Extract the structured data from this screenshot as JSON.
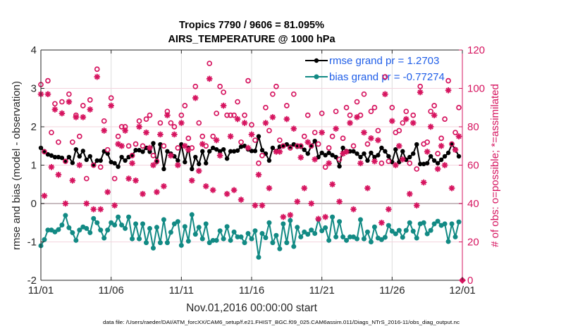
{
  "chart_data": {
    "type": "line",
    "title": "Tropics 7790 / 9606 = 81.095%",
    "subtitle": "AIRS_TEMPERATURE @ 1000 hPa",
    "xlabel": "Nov.01,2016 00:00:00 start",
    "ylabel": "rmse and bias (model - observation)",
    "y2label": "# of obs: o=possible; *=assimilated",
    "x_unit": "days since 11/01/2016 00:00",
    "x_step_days": 0.25,
    "xlim_days": [
      0,
      30
    ],
    "x_ticks_days": [
      0,
      5,
      10,
      15,
      20,
      25,
      30
    ],
    "x_tick_labels": [
      "11/01",
      "11/06",
      "11/11",
      "11/16",
      "11/21",
      "11/26",
      "12/01"
    ],
    "ylim": [
      -2,
      4
    ],
    "y_ticks": [
      -2,
      -1,
      0,
      1,
      2,
      3,
      4
    ],
    "y2lim": [
      0,
      120
    ],
    "y2_ticks": [
      0,
      20,
      40,
      60,
      80,
      100,
      120
    ],
    "grid": "on",
    "zero_line": 0,
    "legend_position": "top-right",
    "legend": [
      {
        "label": "rmse grand pr = 1.2703",
        "series": "rmse"
      },
      {
        "label": "bias grand pr = -0.77274",
        "series": "bias"
      }
    ],
    "series": [
      {
        "name": "rmse",
        "axis": "left",
        "style": "line-dot",
        "values": [
          1.45,
          1.36,
          1.28,
          1.25,
          1.21,
          1.21,
          1.19,
          1.1,
          1.21,
          1.06,
          1.41,
          1.23,
          1.37,
          1.14,
          1.23,
          0.99,
          1.12,
          1.12,
          1.36,
          1.3,
          1.08,
          1.05,
          0.96,
          1.21,
          1.12,
          1.21,
          1.26,
          1.39,
          1.39,
          1.35,
          1.45,
          1.35,
          1.57,
          1.08,
          1.54,
          0.9,
          1.36,
          1.3,
          1.23,
          1.12,
          1.54,
          1.08,
          1.45,
          0.9,
          1.21,
          1.03,
          1.36,
          1.05,
          1.36,
          1.45,
          1.41,
          1.36,
          1.41,
          1.17,
          1.36,
          1.36,
          1.38,
          1.48,
          1.5,
          1.41,
          1.37,
          1.37,
          1.75,
          1.39,
          1.3,
          1.12,
          1.45,
          1.36,
          1.48,
          1.5,
          1.54,
          1.48,
          1.54,
          1.48,
          1.48,
          1.4,
          1.3,
          1.5,
          1.63,
          1.21,
          1.32,
          1.26,
          1.32,
          1.26,
          1.21,
          0.97,
          1.45,
          1.36,
          1.36,
          1.36,
          1.3,
          1.21,
          1.3,
          1.12,
          1.32,
          1.21,
          1.26,
          1.45,
          1.36,
          1.23,
          1.08,
          1.41,
          1.08,
          1.36,
          1.14,
          1.21,
          1.3,
          1.54,
          1.03,
          1.03,
          1.05,
          1.23,
          1.12,
          1.05,
          1.14,
          1.23,
          1.32,
          1.54,
          1.41,
          1.23
        ]
      },
      {
        "name": "bias",
        "axis": "left",
        "style": "line-dot",
        "values": [
          -1.1,
          -0.94,
          -0.69,
          -0.69,
          -0.74,
          -0.68,
          -0.56,
          -0.31,
          -0.63,
          -0.76,
          -0.96,
          -0.69,
          -0.61,
          -0.65,
          -0.76,
          -0.39,
          -0.5,
          -0.69,
          -0.9,
          -0.69,
          -0.5,
          -0.56,
          -0.35,
          -0.56,
          -0.65,
          -0.35,
          -0.92,
          -0.53,
          -0.92,
          -0.53,
          -1.02,
          -0.65,
          -1.16,
          -0.62,
          -1.02,
          -0.42,
          -1.02,
          -0.75,
          -0.53,
          -0.47,
          -1.09,
          -0.6,
          -0.98,
          -0.29,
          -0.8,
          -0.62,
          -0.92,
          -0.53,
          -1.02,
          -0.96,
          -0.96,
          -0.71,
          -0.92,
          -0.6,
          -0.96,
          -0.74,
          -0.87,
          -0.87,
          -1.02,
          -0.78,
          -0.92,
          -0.71,
          -1.4,
          -0.78,
          -0.89,
          -0.5,
          -1.02,
          -0.83,
          -1.18,
          -0.53,
          -1.02,
          -0.44,
          -1.12,
          -0.62,
          -0.87,
          -0.74,
          -0.8,
          -0.69,
          -0.78,
          -0.42,
          -0.71,
          -0.63,
          -0.96,
          -0.35,
          -0.87,
          -0.47,
          -0.87,
          -0.96,
          -0.87,
          -0.87,
          -0.92,
          -0.42,
          -0.92,
          -0.74,
          -1.0,
          -0.61,
          -0.9,
          -0.94,
          -0.88,
          -0.57,
          -0.72,
          -0.79,
          -0.7,
          -0.88,
          -0.7,
          -0.5,
          -0.72,
          -0.9,
          -0.53,
          -0.5,
          -0.79,
          -0.7,
          -0.53,
          -0.46,
          -0.57,
          -0.53,
          -0.99,
          -0.53,
          -0.87,
          -0.48
        ]
      },
      {
        "name": "obs possible",
        "axis": "right",
        "style": "circle",
        "values": [
          102,
          67,
          104,
          77,
          92,
          72,
          93,
          62,
          97,
          72,
          86,
          75,
          91,
          53,
          94,
          60,
          110,
          59,
          83,
          68,
          95,
          53,
          75,
          80,
          80,
          70,
          65,
          71,
          83,
          70,
          84,
          86,
          65,
          62,
          82,
          70,
          88,
          82,
          80,
          69,
          86,
          91,
          74,
          69,
          101,
          82,
          75,
          70,
          113,
          75,
          87,
          101,
          98,
          86,
          86,
          86,
          93,
          72,
          86,
          104,
          81,
          73,
          61,
          65,
          90,
          78,
          97,
          101,
          73,
          70,
          91,
          69,
          97,
          70,
          70,
          75,
          86,
          70,
          77,
          71,
          87,
          59,
          69,
          75,
          88,
          63,
          74,
          90,
          86,
          70,
          93,
          86,
          97,
          71,
          88,
          90,
          78,
          61,
          106,
          62,
          90,
          77,
          78,
          82,
          88,
          61,
          86,
          58,
          101,
          71,
          72,
          88,
          91,
          66,
          74,
          84,
          104,
          71,
          77,
          90
        ]
      },
      {
        "name": "obs assimilated",
        "axis": "right",
        "style": "asterisk",
        "values": [
          97,
          44,
          97,
          59,
          89,
          55,
          87,
          40,
          93,
          52,
          85,
          60,
          85,
          40,
          89,
          37,
          106,
          37,
          78,
          46,
          91,
          39,
          71,
          70,
          78,
          53,
          61,
          52,
          80,
          45,
          77,
          69,
          60,
          46,
          76,
          49,
          86,
          65,
          76,
          60,
          82,
          70,
          68,
          52,
          95,
          57,
          71,
          49,
          105,
          47,
          73,
          65,
          91,
          45,
          75,
          47,
          84,
          42,
          82,
          69,
          76,
          39,
          55,
          39,
          82,
          48,
          85,
          67,
          67,
          33,
          84,
          34,
          79,
          41,
          64,
          48,
          72,
          40,
          63,
          32,
          77,
          33,
          61,
          50,
          79,
          41,
          66,
          67,
          82,
          37,
          85,
          61,
          77,
          48,
          74,
          62,
          73,
          30,
          97,
          37,
          83,
          60,
          70,
          63,
          84,
          45,
          82,
          39,
          98,
          51,
          67,
          80,
          86,
          58,
          70,
          60,
          99,
          48,
          68,
          75
        ]
      }
    ],
    "end_marker": {
      "x_day": 30,
      "value": 0,
      "axis": "right"
    },
    "footnote": "data file: /Users/raeder/DAI/ATM_forcXX/CAM6_setup/f.e21.FHIST_BGC.f09_025.CAM6assim.011/Diags_NTrS_2016-11/obs_diag_output.nc"
  },
  "colors": {
    "rmse": "#000000",
    "bias": "#128a84",
    "obs": "#d6145f",
    "legend_text": "#1f5ee8",
    "grid_h": "#f3d4de",
    "grid_v": "#dcdcdc",
    "zero_line": "#c8bcc0",
    "axis_left": "#262626",
    "axis_right": "#d6145f"
  }
}
